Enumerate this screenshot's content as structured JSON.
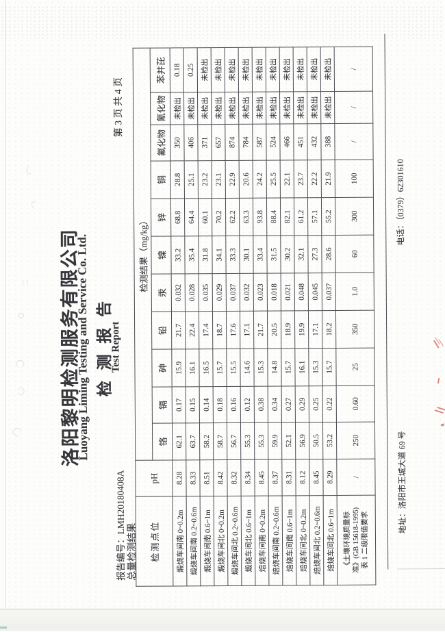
{
  "colors": {
    "ink": "#35353a",
    "paper": "#fdfdfc",
    "line": "#4c4c52",
    "red": "#c5433d"
  },
  "header": {
    "company_cn": "洛阳黎明检测服务有限公司",
    "company_en": "Luoyang Liming Testing and Service Co. Ltd.",
    "doc_title_cn": "检 测 报 告",
    "doc_title_en": "Test Report"
  },
  "meta": {
    "report_no_label": "报告编号：",
    "report_no": "LMH20180408A",
    "page_label": "第 3 页 共 4 页",
    "section_title": "总量检测结果"
  },
  "table": {
    "point_header": "检测点位",
    "ph_header": "pH",
    "result_group_header": "检测结果（mg/kg）",
    "analyte_headers": [
      "铬",
      "镉",
      "砷",
      "铅",
      "汞",
      "镍",
      "锌",
      "铜",
      "氟化物",
      "氰化物",
      "苯并芘"
    ],
    "rows": [
      {
        "point": "煅烧车间南 0~0.2m",
        "ph": "8.28",
        "values": [
          "62.1",
          "0.17",
          "15.9",
          "21.7",
          "0.032",
          "33.2",
          "68.8",
          "28.8",
          "350",
          "未检出",
          "0.18"
        ]
      },
      {
        "point": "煅烧车间南 0.2~0.6m",
        "ph": "8.33",
        "values": [
          "63.7",
          "0.15",
          "16.1",
          "22.4",
          "0.028",
          "35.4",
          "64.4",
          "25.1",
          "406",
          "未检出",
          "0.25"
        ]
      },
      {
        "point": "煅烧车间南 0.6~1m",
        "ph": "8.51",
        "values": [
          "58.2",
          "0.14",
          "16.5",
          "17.4",
          "0.035",
          "31.8",
          "60.1",
          "23.2",
          "371",
          "未检出",
          "未检出"
        ]
      },
      {
        "point": "煅烧车间北 0~0.2m",
        "ph": "8.42",
        "values": [
          "58.7",
          "0.18",
          "15.7",
          "18.7",
          "0.029",
          "34.1",
          "70.2",
          "23.1",
          "657",
          "未检出",
          "未检出"
        ]
      },
      {
        "point": "煅烧车间北 0.2~0.6m",
        "ph": "8.32",
        "values": [
          "56.7",
          "0.16",
          "15.5",
          "17.6",
          "0.037",
          "33.3",
          "62.2",
          "22.9",
          "874",
          "未检出",
          "未检出"
        ]
      },
      {
        "point": "煅烧车间北 0.6~1m",
        "ph": "8.34",
        "values": [
          "55.3",
          "0.12",
          "14.6",
          "17.1",
          "0.032",
          "30.1",
          "63.3",
          "20.6",
          "784",
          "未检出",
          "未检出"
        ]
      },
      {
        "point": "焙烧车间南 0~0.2m",
        "ph": "8.45",
        "values": [
          "55.3",
          "0.38",
          "15.3",
          "21.7",
          "0.023",
          "33.4",
          "93.8",
          "24.2",
          "587",
          "未检出",
          "未检出"
        ]
      },
      {
        "point": "焙烧车间南 0.2~0.6m",
        "ph": "8.37",
        "values": [
          "59.9",
          "0.34",
          "14.8",
          "20.5",
          "0.018",
          "31.5",
          "88.4",
          "25.5",
          "524",
          "未检出",
          "未检出"
        ]
      },
      {
        "point": "焙烧车间南 0.6~1m",
        "ph": "8.31",
        "values": [
          "52.1",
          "0.27",
          "15.7",
          "18.9",
          "0.021",
          "30.2",
          "82.1",
          "22.1",
          "466",
          "未检出",
          "未检出"
        ]
      },
      {
        "point": "焙烧车间北 0~0.2m",
        "ph": "8.12",
        "values": [
          "56.9",
          "0.29",
          "16.1",
          "19.9",
          "0.048",
          "32.1",
          "61.2",
          "23.7",
          "451",
          "未检出",
          "未检出"
        ]
      },
      {
        "point": "焙烧车间北 0.2~0.6m",
        "ph": "8.45",
        "values": [
          "50.5",
          "0.25",
          "15.3",
          "17.1",
          "0.045",
          "27.3",
          "57.1",
          "22.2",
          "432",
          "未检出",
          "未检出"
        ]
      },
      {
        "point": "焙烧车间北 0.6~1m",
        "ph": "8.29",
        "values": [
          "53.2",
          "0.22",
          "15.7",
          "18.2",
          "0.037",
          "28.6",
          "55.2",
          "21.9",
          "388",
          "未检出",
          "未检出"
        ]
      }
    ],
    "limit_row": {
      "point_lines": [
        "《土壤环境质量标",
        "准》(GB 15618-1995)",
        "表 1 二级限值要求"
      ],
      "ph": "/",
      "values": [
        "250",
        "0.60",
        "25",
        "350",
        "1.0",
        "60",
        "300",
        "100",
        "/",
        "/",
        "/"
      ]
    }
  },
  "footer": {
    "address": "地址：洛阳市王城大道 69 号",
    "phone": "电话：（0379）62301610"
  }
}
